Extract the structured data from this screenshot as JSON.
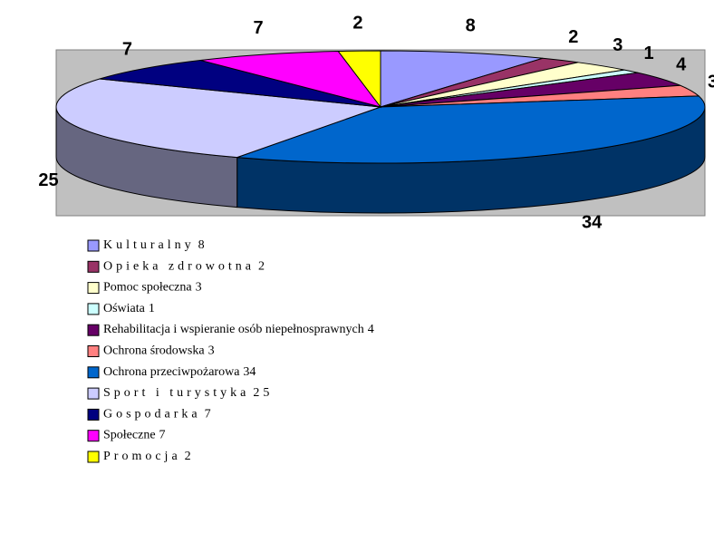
{
  "chart_data": {
    "type": "pie",
    "categories": [
      "Kulturalny",
      "Opieka zdrowotna",
      "Pomoc społeczna",
      "Oświata",
      "Rehabilitacja i wspieranie osób niepełnosprawnych",
      "Ochrona środowska",
      "Ochrona przeciwpożarowa",
      "Sport i turystyka",
      "Gospodarka",
      "Społeczne",
      "Promocja"
    ],
    "values": [
      8,
      2,
      3,
      1,
      4,
      3,
      34,
      25,
      7,
      7,
      2
    ],
    "colors": [
      "#9999ff",
      "#993366",
      "#ffffcc",
      "#ccffff",
      "#660066",
      "#ff8080",
      "#0066cc",
      "#ccccff",
      "#000080",
      "#ff00ff",
      "#ffff00"
    ]
  }
}
